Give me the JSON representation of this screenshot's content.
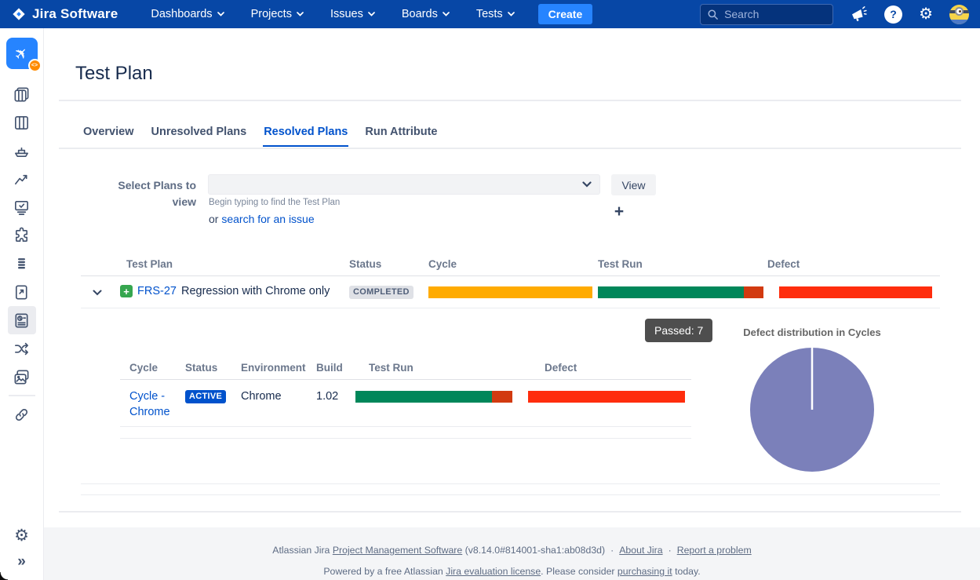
{
  "colors": {
    "accent": "#0052CC",
    "navbar": "#0747A6",
    "bar_orange": "#FFAB00",
    "bar_green": "#00875A",
    "bar_fail_red": "#D23A10",
    "bar_defect_red": "#FF2D0D",
    "pie_purple": "#7B80BA"
  },
  "header": {
    "logo_text": "Jira Software",
    "nav": [
      {
        "label": "Dashboards"
      },
      {
        "label": "Projects"
      },
      {
        "label": "Issues"
      },
      {
        "label": "Boards"
      },
      {
        "label": "Tests"
      }
    ],
    "create_label": "Create",
    "search": {
      "placeholder": "Search",
      "value": ""
    },
    "help_glyph": "?",
    "gear_glyph": "⚙",
    "badge_glyph": "<>"
  },
  "sidebar": {
    "expand_glyph": "»",
    "gear_glyph": "⚙",
    "plane_glyph": "✈"
  },
  "page": {
    "title": "Test Plan",
    "tabs": [
      {
        "label": "Overview"
      },
      {
        "label": "Unresolved Plans"
      },
      {
        "label": "Resolved Plans"
      },
      {
        "label": "Run Attribute"
      }
    ],
    "form": {
      "label_line1": "Select Plans to",
      "label_line2": "view",
      "hint": "Begin typing to find the Test Plan",
      "or_text": "or ",
      "search_link": "search for an issue",
      "view_label": "View",
      "add_label": "+"
    },
    "plans_table": {
      "headers": [
        "Test Plan",
        "Status",
        "Cycle",
        "Test Run",
        "Defect"
      ],
      "row": {
        "type_icon_glyph": "+",
        "key": "FRS-27",
        "summary": "Regression with Chrome only",
        "status": "COMPLETED"
      }
    },
    "details": {
      "tooltip": "Passed: 7",
      "cycles_table": {
        "headers": [
          "Cycle",
          "Status",
          "Environment",
          "Build",
          "Test Run",
          "Defect"
        ],
        "row": {
          "cycle": "Cycle - Chrome",
          "status": "ACTIVE",
          "environment": "Chrome",
          "build": "1.02"
        }
      }
    },
    "bars": {
      "plan_cycle": [
        {
          "color": "#FFAB00",
          "pct": 100
        }
      ],
      "plan_testrun": [
        {
          "color": "#00875A",
          "pct": 88
        },
        {
          "color": "#D23A10",
          "pct": 12
        }
      ],
      "plan_defect": [
        {
          "color": "#FF2D0D",
          "pct": 100
        }
      ],
      "cycle_testrun": [
        {
          "color": "#00875A",
          "pct": 87
        },
        {
          "color": "#D23A10",
          "pct": 13
        }
      ],
      "cycle_defect": [
        {
          "color": "#FF2D0D",
          "pct": 100
        }
      ]
    }
  },
  "chart_data": {
    "type": "pie",
    "title": "Defect distribution in Cycles",
    "labels": [
      "Cycle - Chrome"
    ],
    "values": [
      100
    ],
    "colors": [
      "#7B80BA"
    ],
    "legend": "none",
    "annotation": "Passed: 7"
  },
  "footer": {
    "line1": {
      "prefix": "Atlassian Jira ",
      "link_software": "Project Management Software",
      "version": " (v8.14.0#814001-sha1:ab08d3d)",
      "sep": "·",
      "link_about": "About Jira",
      "link_report": "Report a problem"
    },
    "line2": {
      "prefix": "Powered by a free Atlassian ",
      "link_license": "Jira evaluation license",
      "mid": ". Please consider ",
      "link_purchase": "purchasing it",
      "suffix": " today."
    }
  }
}
